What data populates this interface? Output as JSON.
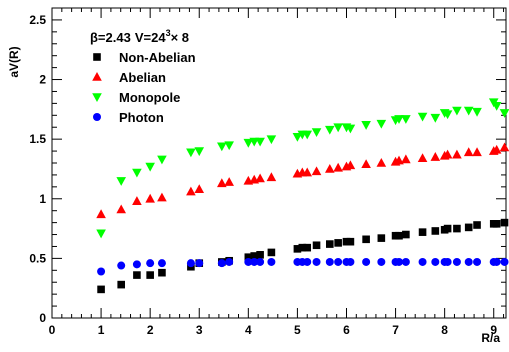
{
  "chart_data": {
    "type": "scatter",
    "title": "",
    "annotation": {
      "beta": "β=2.43",
      "volume_base": "V=24",
      "volume_exp": "3",
      "volume_tail": "× 8"
    },
    "xlabel": "R/a",
    "ylabel": "aV(R)",
    "xlim": [
      0,
      9.25
    ],
    "ylim": [
      0,
      2.6
    ],
    "x_ticks": [
      {
        "v": 0,
        "label": "0"
      },
      {
        "v": 1,
        "label": "1"
      },
      {
        "v": 2,
        "label": "2"
      },
      {
        "v": 3,
        "label": "3"
      },
      {
        "v": 4,
        "label": "4"
      },
      {
        "v": 5,
        "label": "5"
      },
      {
        "v": 6,
        "label": "6"
      },
      {
        "v": 7,
        "label": "7"
      },
      {
        "v": 8,
        "label": "8"
      },
      {
        "v": 9,
        "label": "9"
      }
    ],
    "y_ticks": [
      {
        "v": 0,
        "label": "0"
      },
      {
        "v": 0.5,
        "label": "0.5"
      },
      {
        "v": 1,
        "label": "1"
      },
      {
        "v": 1.5,
        "label": "1.5"
      },
      {
        "v": 2,
        "label": "2"
      },
      {
        "v": 2.5,
        "label": "2.5"
      }
    ],
    "grid": false,
    "legend_position": "top-left",
    "series": [
      {
        "name": "Non-Abelian",
        "marker": "square",
        "color": "#000000",
        "points": [
          [
            1,
            0.24
          ],
          [
            1.41,
            0.28
          ],
          [
            1.73,
            0.36
          ],
          [
            2,
            0.36
          ],
          [
            2.24,
            0.38
          ],
          [
            2.83,
            0.43
          ],
          [
            3,
            0.46
          ],
          [
            3.46,
            0.47
          ],
          [
            3.61,
            0.48
          ],
          [
            4,
            0.51
          ],
          [
            4.12,
            0.52
          ],
          [
            4.24,
            0.53
          ],
          [
            4.47,
            0.55
          ],
          [
            5,
            0.58
          ],
          [
            5.1,
            0.59
          ],
          [
            5.2,
            0.59
          ],
          [
            5.39,
            0.61
          ],
          [
            5.66,
            0.62
          ],
          [
            5.83,
            0.63
          ],
          [
            6,
            0.64
          ],
          [
            6.08,
            0.64
          ],
          [
            6.4,
            0.66
          ],
          [
            6.71,
            0.67
          ],
          [
            7,
            0.69
          ],
          [
            7.07,
            0.69
          ],
          [
            7.21,
            0.7
          ],
          [
            7.55,
            0.72
          ],
          [
            7.81,
            0.73
          ],
          [
            8,
            0.74
          ],
          [
            8.06,
            0.75
          ],
          [
            8.25,
            0.75
          ],
          [
            8.49,
            0.76
          ],
          [
            8.66,
            0.78
          ],
          [
            9,
            0.79
          ],
          [
            9.06,
            0.79
          ],
          [
            9.22,
            0.8
          ]
        ]
      },
      {
        "name": "Abelian",
        "marker": "triangle-up",
        "color": "#ff0000",
        "points": [
          [
            1,
            0.87
          ],
          [
            1.41,
            0.91
          ],
          [
            1.73,
            0.98
          ],
          [
            2,
            1.0
          ],
          [
            2.24,
            1.01
          ],
          [
            2.83,
            1.06
          ],
          [
            3,
            1.08
          ],
          [
            3.46,
            1.13
          ],
          [
            3.61,
            1.14
          ],
          [
            4,
            1.15
          ],
          [
            4.12,
            1.16
          ],
          [
            4.24,
            1.17
          ],
          [
            4.47,
            1.18
          ],
          [
            5,
            1.21
          ],
          [
            5.1,
            1.22
          ],
          [
            5.2,
            1.22
          ],
          [
            5.39,
            1.23
          ],
          [
            5.66,
            1.25
          ],
          [
            5.83,
            1.26
          ],
          [
            6,
            1.27
          ],
          [
            6.08,
            1.28
          ],
          [
            6.4,
            1.29
          ],
          [
            6.71,
            1.3
          ],
          [
            7,
            1.31
          ],
          [
            7.07,
            1.32
          ],
          [
            7.21,
            1.33
          ],
          [
            7.55,
            1.34
          ],
          [
            7.81,
            1.35
          ],
          [
            8,
            1.36
          ],
          [
            8.06,
            1.37
          ],
          [
            8.25,
            1.37
          ],
          [
            8.49,
            1.39
          ],
          [
            8.66,
            1.39
          ],
          [
            9,
            1.4
          ],
          [
            9.06,
            1.41
          ],
          [
            9.22,
            1.43
          ]
        ]
      },
      {
        "name": "Monopole",
        "marker": "triangle-down",
        "color": "#00ff00",
        "points": [
          [
            1,
            0.71
          ],
          [
            1.41,
            1.15
          ],
          [
            1.73,
            1.22
          ],
          [
            2,
            1.27
          ],
          [
            2.24,
            1.33
          ],
          [
            2.83,
            1.39
          ],
          [
            3,
            1.4
          ],
          [
            3.46,
            1.44
          ],
          [
            3.61,
            1.45
          ],
          [
            4,
            1.47
          ],
          [
            4.12,
            1.48
          ],
          [
            4.24,
            1.48
          ],
          [
            4.47,
            1.5
          ],
          [
            5,
            1.52
          ],
          [
            5.1,
            1.54
          ],
          [
            5.2,
            1.54
          ],
          [
            5.39,
            1.56
          ],
          [
            5.66,
            1.58
          ],
          [
            5.83,
            1.6
          ],
          [
            6,
            1.6
          ],
          [
            6.08,
            1.59
          ],
          [
            6.4,
            1.62
          ],
          [
            6.71,
            1.63
          ],
          [
            7,
            1.66
          ],
          [
            7.07,
            1.67
          ],
          [
            7.21,
            1.67
          ],
          [
            7.55,
            1.69
          ],
          [
            7.81,
            1.68
          ],
          [
            8,
            1.72
          ],
          [
            8.06,
            1.71
          ],
          [
            8.25,
            1.74
          ],
          [
            8.49,
            1.74
          ],
          [
            8.66,
            1.73
          ],
          [
            9,
            1.81
          ],
          [
            9.06,
            1.78
          ],
          [
            9.22,
            1.72
          ]
        ]
      },
      {
        "name": "Photon",
        "marker": "circle",
        "color": "#0000ff",
        "points": [
          [
            1,
            0.39
          ],
          [
            1.41,
            0.44
          ],
          [
            1.73,
            0.45
          ],
          [
            2,
            0.46
          ],
          [
            2.24,
            0.46
          ],
          [
            2.83,
            0.46
          ],
          [
            3,
            0.46
          ],
          [
            3.46,
            0.46
          ],
          [
            3.61,
            0.47
          ],
          [
            4,
            0.47
          ],
          [
            4.12,
            0.47
          ],
          [
            4.24,
            0.47
          ],
          [
            4.47,
            0.47
          ],
          [
            5,
            0.47
          ],
          [
            5.1,
            0.47
          ],
          [
            5.2,
            0.47
          ],
          [
            5.39,
            0.47
          ],
          [
            5.66,
            0.47
          ],
          [
            5.83,
            0.47
          ],
          [
            6,
            0.47
          ],
          [
            6.08,
            0.47
          ],
          [
            6.4,
            0.47
          ],
          [
            6.71,
            0.47
          ],
          [
            7,
            0.47
          ],
          [
            7.07,
            0.47
          ],
          [
            7.21,
            0.47
          ],
          [
            7.55,
            0.47
          ],
          [
            7.81,
            0.47
          ],
          [
            8,
            0.47
          ],
          [
            8.06,
            0.47
          ],
          [
            8.25,
            0.47
          ],
          [
            8.49,
            0.47
          ],
          [
            8.66,
            0.47
          ],
          [
            9,
            0.47
          ],
          [
            9.06,
            0.47
          ],
          [
            9.22,
            0.47
          ]
        ]
      }
    ]
  }
}
